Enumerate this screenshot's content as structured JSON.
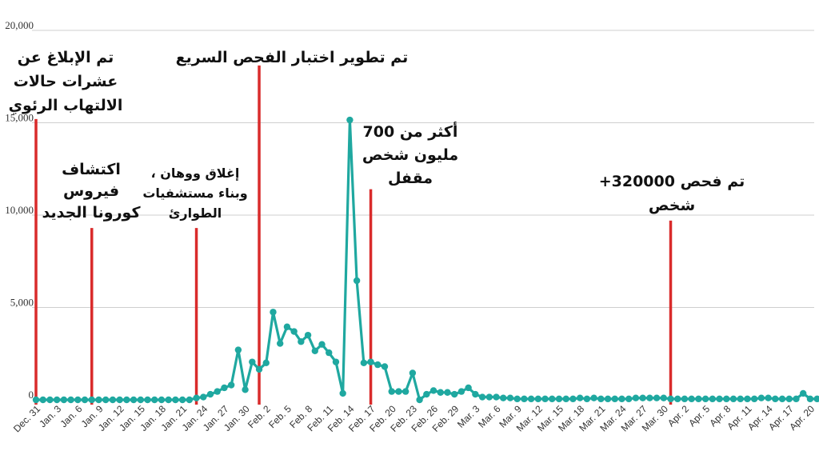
{
  "chart_data": {
    "type": "line",
    "title": "",
    "xlabel": "",
    "ylabel": "",
    "ylim": [
      0,
      20000
    ],
    "grid": true,
    "legend": "none",
    "line_color": "#1fa8a0",
    "marker_color": "#1fa8a0",
    "event_line_color": "#d92b2b",
    "y_ticks": [
      {
        "value": 0,
        "label": "0"
      },
      {
        "value": 5000,
        "label": "5,000"
      },
      {
        "value": 10000,
        "label": "10,000"
      },
      {
        "value": 15000,
        "label": "15,000"
      },
      {
        "value": 20000,
        "label": "20,000"
      }
    ],
    "x_tick_labels": [
      "Dec. 31",
      "Jan. 3",
      "Jan. 6",
      "Jan. 9",
      "Jan. 12",
      "Jan. 15",
      "Jan. 18",
      "Jan. 21",
      "Jan. 24",
      "Jan. 27",
      "Jan. 30",
      "Feb. 2",
      "Feb. 5",
      "Feb. 8",
      "Feb. 11",
      "Feb. 14",
      "Feb. 17",
      "Feb. 20",
      "Feb. 23",
      "Feb. 26",
      "Feb. 29",
      "Mar. 3",
      "Mar. 6",
      "Mar. 9",
      "Mar. 12",
      "Mar. 15",
      "Mar. 18",
      "Mar. 21",
      "Mar. 24",
      "Mar. 27",
      "Mar. 30",
      "Apr. 2",
      "Apr. 5",
      "Apr. 8",
      "Apr. 11",
      "Apr. 14",
      "Apr. 17",
      "Apr. 20"
    ],
    "x_start": "Dec. 31",
    "x_end": "Apr. 20",
    "values": [
      0,
      0,
      0,
      0,
      0,
      0,
      0,
      0,
      0,
      0,
      0,
      0,
      0,
      0,
      0,
      0,
      0,
      0,
      0,
      0,
      0,
      0,
      0,
      100,
      150,
      300,
      450,
      650,
      800,
      2700,
      550,
      2050,
      1650,
      2000,
      4750,
      3050,
      3950,
      3700,
      3150,
      3500,
      2650,
      3000,
      2550,
      2050,
      350,
      15150,
      6450,
      2000,
      2050,
      1900,
      1800,
      450,
      450,
      450,
      1450,
      0,
      300,
      500,
      400,
      400,
      300,
      450,
      650,
      300,
      150,
      150,
      150,
      100,
      100,
      50,
      50,
      50,
      50,
      50,
      50,
      50,
      50,
      50,
      100,
      50,
      100,
      50,
      50,
      50,
      50,
      50,
      100,
      100,
      100,
      100,
      100,
      50,
      50,
      50,
      50,
      50,
      50,
      50,
      50,
      50,
      50,
      50,
      50,
      50,
      100,
      100,
      50,
      50,
      50,
      50,
      350,
      50,
      50,
      50,
      50
    ],
    "annotations": [
      {
        "date": "Dec. 31",
        "day": 0,
        "line_top": 15200,
        "lines": [
          "تم الإبلاغ عن",
          "عشرات حالات",
          "الالتهاب الرئوي"
        ]
      },
      {
        "date": "Jan. 9",
        "day": 8,
        "line_top": 9300,
        "lines": [
          "اكتشاف",
          "فيروس",
          "كورونا الجديد"
        ]
      },
      {
        "date": "Jan. 23",
        "day": 23,
        "line_top": 9300,
        "lines": [
          "إغلاق ووهان ،",
          "وبناء مستشفيات",
          "الطوارئ"
        ]
      },
      {
        "date": "Feb. 1",
        "day": 32,
        "line_top": 18100,
        "lines": [
          "تم تطوير اختبار الفحص السريع"
        ]
      },
      {
        "date": "Feb. 18",
        "day": 48,
        "line_top": 11400,
        "lines": [
          "أكثر من 700",
          "مليون شخص",
          "مقفل"
        ]
      },
      {
        "date": "Apr. 1",
        "day": 91,
        "line_top": 9700,
        "lines": [
          "تم فحص 320000+",
          "شخص"
        ]
      }
    ]
  }
}
